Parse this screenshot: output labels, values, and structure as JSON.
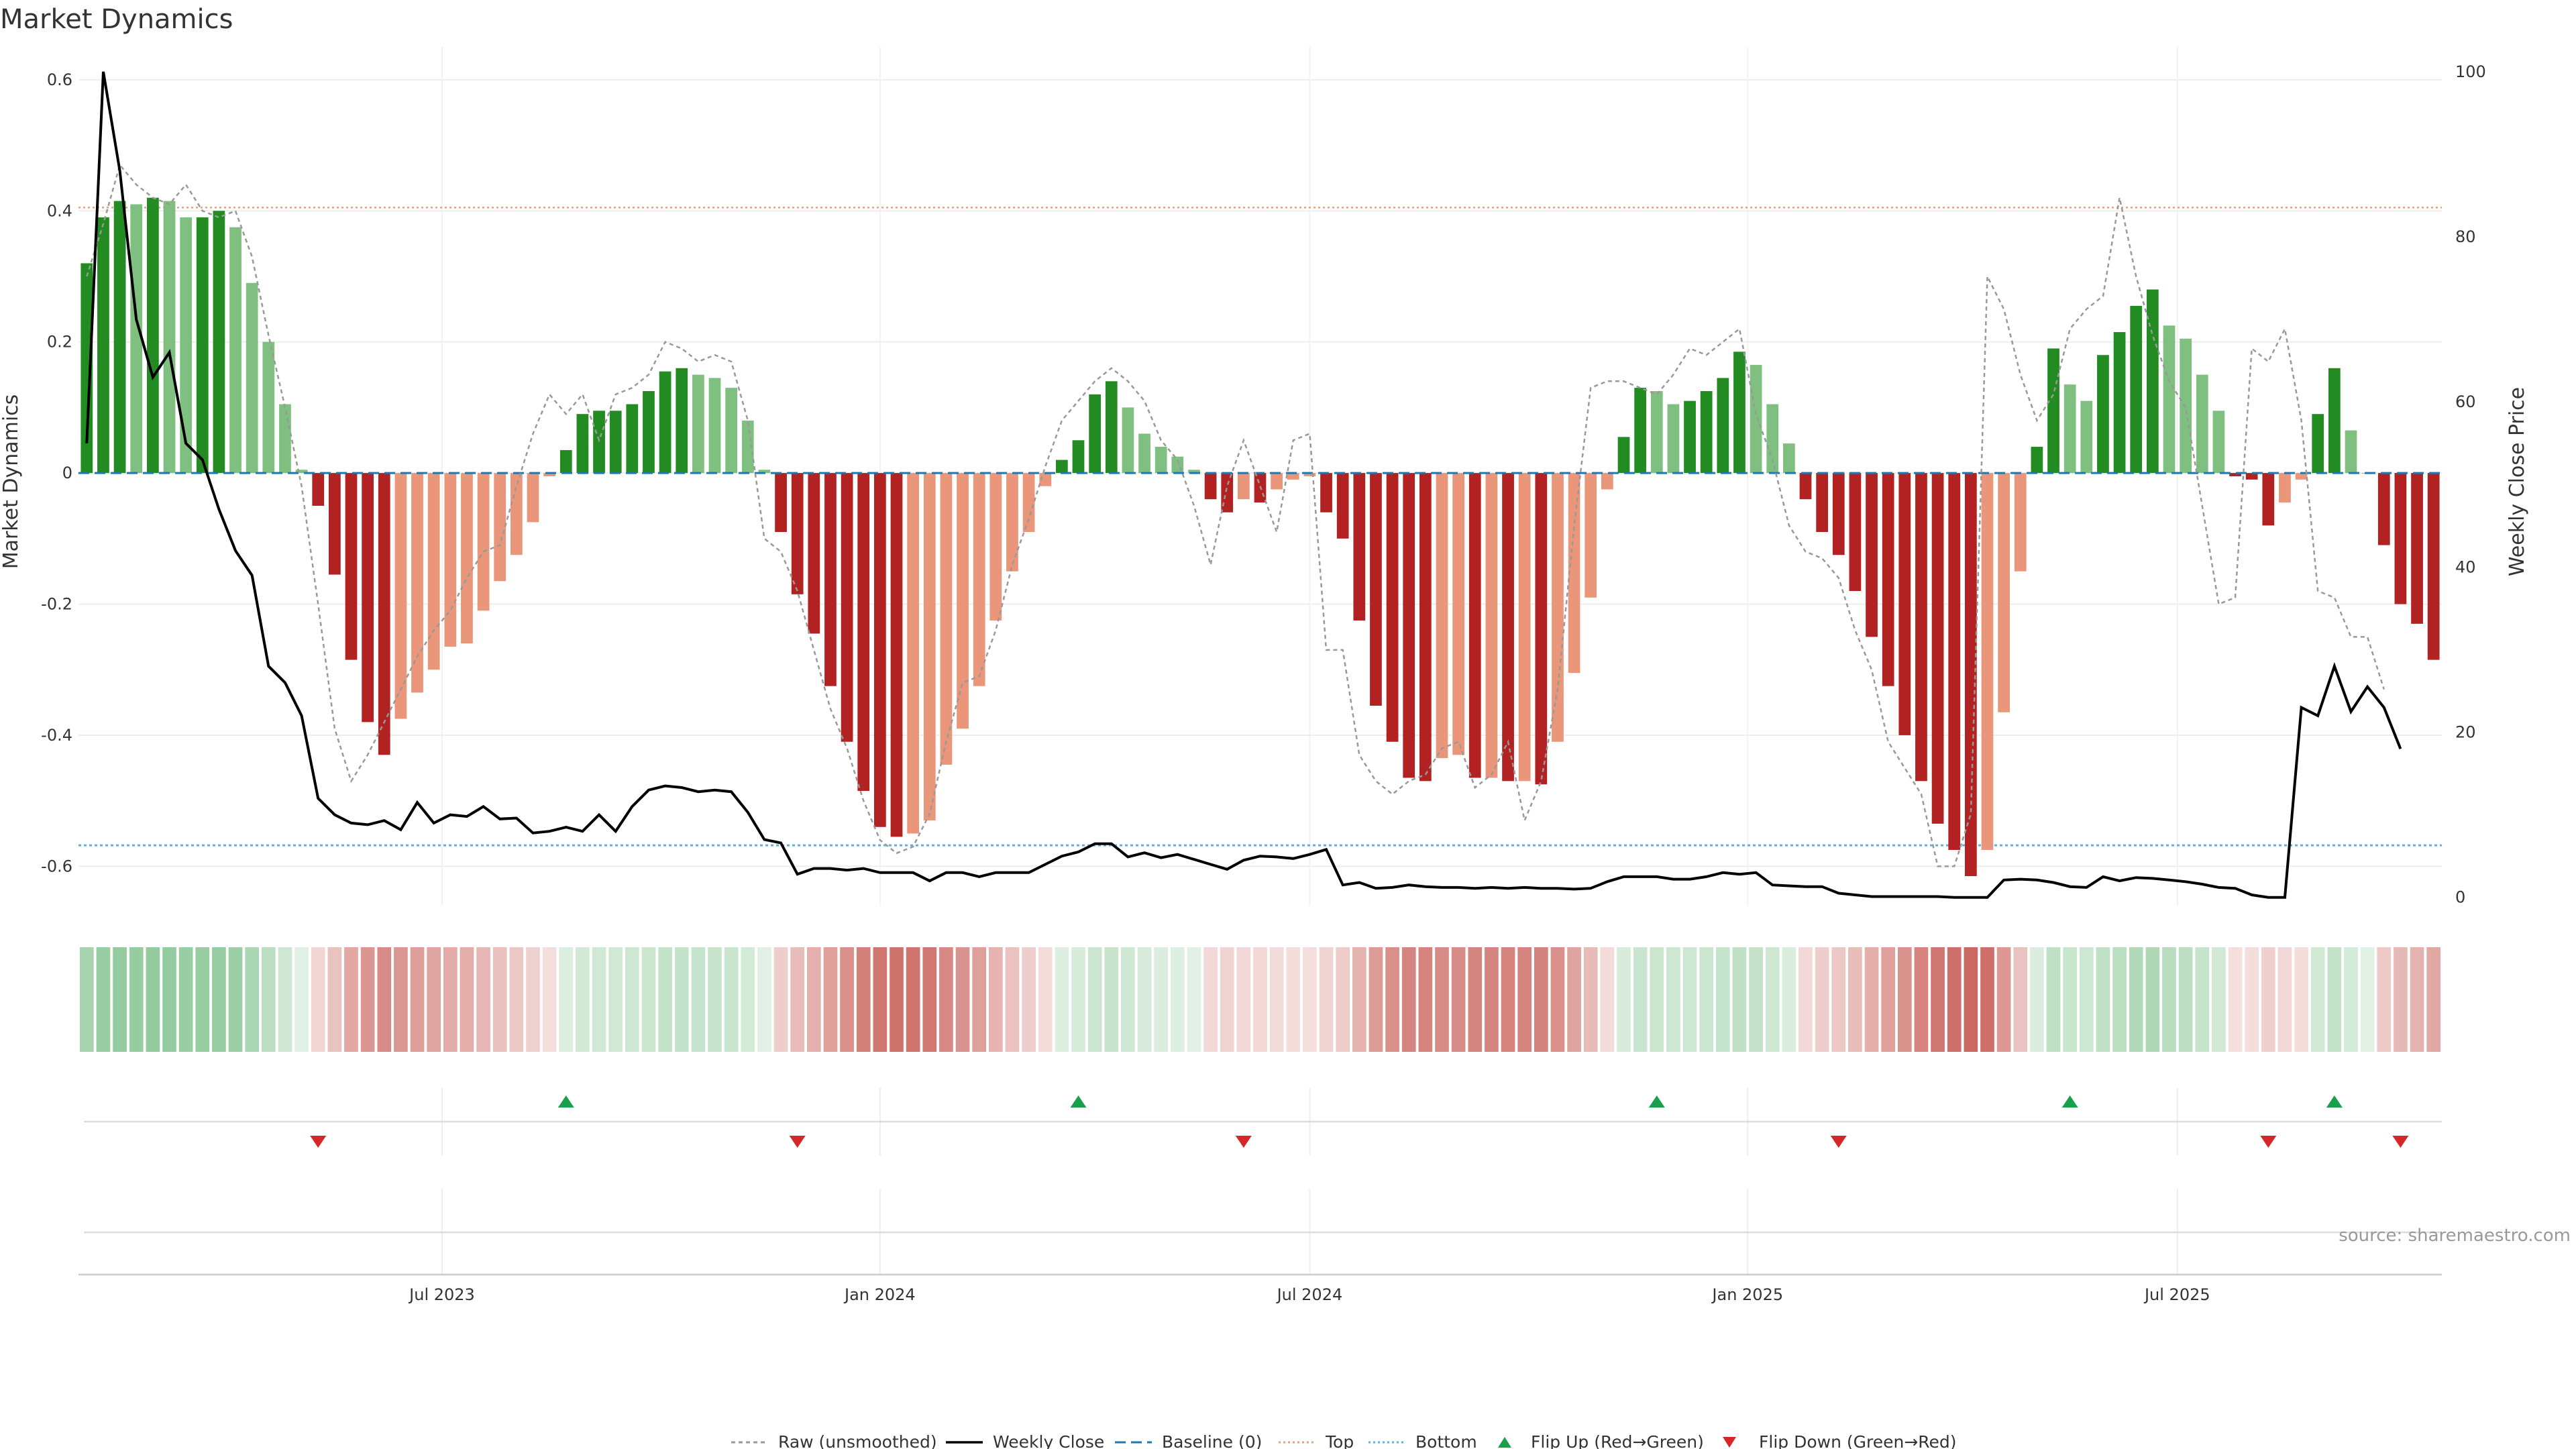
{
  "chart_data": {
    "type": "bar",
    "title": "Market Dynamics",
    "ylabel": "Market Dynamics",
    "y2label": "Weekly Close Price",
    "ylim": [
      -0.66,
      0.65
    ],
    "y2lim": [
      -1,
      103
    ],
    "yticks": [
      "-0.6",
      "-0.4",
      "-0.2",
      "0",
      "0.2",
      "0.4",
      "0.6"
    ],
    "yticks_values": [
      -0.6,
      -0.4,
      -0.2,
      0,
      0.2,
      0.4,
      0.6
    ],
    "y2ticks": [
      "0",
      "20",
      "40",
      "60",
      "80",
      "100"
    ],
    "y2ticks_values": [
      0,
      20,
      40,
      60,
      80,
      100
    ],
    "xticks": [
      "Jul 2023",
      "Jan 2024",
      "Jul 2024",
      "Jan 2025",
      "Jul 2025"
    ],
    "xticks_index": [
      22,
      48.5,
      74.5,
      101,
      127
    ],
    "top_level": 0.405,
    "bottom_level": -0.568,
    "source": "source: sharemaestro.com",
    "legend": {
      "raw": "Raw (unsmoothed)",
      "close": "Weekly Close",
      "baseline": "Baseline (0)",
      "top": "Top",
      "bottom": "Bottom",
      "flip_up": "Flip Up (Red→Green)",
      "flip_down": "Flip Down (Green→Red)"
    },
    "colors": {
      "green_strong": "#228B22",
      "green_light": "#7FBF7F",
      "red_strong": "#B22222",
      "red_light": "#E9967A",
      "close_line": "#000000",
      "raw_line": "#999999",
      "baseline": "#1F77B4",
      "top": "#E8A07A",
      "bottom": "#56B4E9",
      "flip_up": "#18A04A",
      "flip_down": "#D62728"
    },
    "series": [
      {
        "name": "Market Dynamics",
        "values": [
          0.32,
          0.39,
          0.415,
          0.41,
          0.42,
          0.415,
          0.39,
          0.39,
          0.4,
          0.375,
          0.29,
          0.2,
          0.105,
          0.005,
          -0.05,
          -0.155,
          -0.285,
          -0.38,
          -0.43,
          -0.375,
          -0.335,
          -0.3,
          -0.265,
          -0.26,
          -0.21,
          -0.165,
          -0.125,
          -0.075,
          -0.005,
          0.035,
          0.09,
          0.095,
          0.095,
          0.105,
          0.125,
          0.155,
          0.16,
          0.15,
          0.145,
          0.13,
          0.08,
          0.005,
          -0.09,
          -0.185,
          -0.245,
          -0.325,
          -0.41,
          -0.485,
          -0.54,
          -0.555,
          -0.55,
          -0.53,
          -0.445,
          -0.39,
          -0.325,
          -0.225,
          -0.15,
          -0.09,
          -0.02,
          0.02,
          0.05,
          0.12,
          0.14,
          0.1,
          0.06,
          0.04,
          0.025,
          0.005,
          -0.04,
          -0.06,
          -0.04,
          -0.045,
          -0.025,
          -0.01,
          -0.005,
          -0.06,
          -0.1,
          -0.225,
          -0.355,
          -0.41,
          -0.465,
          -0.47,
          -0.435,
          -0.43,
          -0.465,
          -0.465,
          -0.47,
          -0.47,
          -0.475,
          -0.41,
          -0.305,
          -0.19,
          -0.025,
          0.055,
          0.13,
          0.125,
          0.105,
          0.11,
          0.125,
          0.145,
          0.185,
          0.165,
          0.105,
          0.045,
          -0.04,
          -0.09,
          -0.125,
          -0.18,
          -0.25,
          -0.325,
          -0.4,
          -0.47,
          -0.535,
          -0.575,
          -0.615,
          -0.575,
          -0.365,
          -0.15,
          0.04,
          0.19,
          0.135,
          0.11,
          0.18,
          0.215,
          0.255,
          0.28,
          0.225,
          0.205,
          0.15,
          0.095,
          -0.005,
          -0.01,
          -0.08,
          -0.045,
          -0.01,
          0.09,
          0.16,
          0.065,
          0.0,
          -0.11,
          -0.2,
          -0.23,
          -0.285
        ]
      },
      {
        "name": "Weekly Close",
        "values": [
          55,
          100,
          88,
          70,
          63,
          66,
          55,
          53,
          47,
          42,
          39,
          28,
          26,
          22,
          12,
          10,
          9,
          8.8,
          9.3,
          8.2,
          11.5,
          9,
          10,
          9.8,
          11,
          9.5,
          9.6,
          7.8,
          8,
          8.5,
          8,
          10,
          8,
          11,
          13,
          13.5,
          13.3,
          12.8,
          13,
          12.8,
          10.3,
          7,
          6.6,
          2.8,
          3.5,
          3.5,
          3.3,
          3.5,
          3,
          3,
          3,
          2,
          3,
          3,
          2.5,
          3,
          3,
          3,
          4,
          5,
          5.5,
          6.5,
          6.5,
          4.9,
          5.4,
          4.8,
          5.2,
          4.6,
          4,
          3.4,
          4.5,
          5,
          4.9,
          4.7,
          5.2,
          5.8,
          1.5,
          1.8,
          1.1,
          1.2,
          1.5,
          1.3,
          1.2,
          1.2,
          1.1,
          1.2,
          1.1,
          1.2,
          1.1,
          1.1,
          1.0,
          1.1,
          1.9,
          2.5,
          2.5,
          2.5,
          2.2,
          2.2,
          2.5,
          3,
          2.8,
          3,
          1.5,
          1.4,
          1.3,
          1.3,
          0.5,
          0.3,
          0.1,
          0.1,
          0.1,
          0.1,
          0.1,
          0,
          0,
          0,
          2.1,
          2.2,
          2.1,
          1.8,
          1.3,
          1.2,
          2.5,
          2,
          2.4,
          2.3,
          2.1,
          1.9,
          1.6,
          1.2,
          1.1,
          0.3,
          0,
          0,
          23,
          22,
          28,
          22.5,
          25.5,
          23,
          18
        ]
      },
      {
        "name": "Raw (unsmoothed)",
        "values": [
          0.3,
          0.38,
          0.47,
          0.44,
          0.42,
          0.41,
          0.44,
          0.4,
          0.39,
          0.4,
          0.33,
          0.21,
          0.1,
          -0.02,
          -0.2,
          -0.39,
          -0.47,
          -0.43,
          -0.38,
          -0.33,
          -0.28,
          -0.24,
          -0.21,
          -0.16,
          -0.12,
          -0.11,
          -0.02,
          0.06,
          0.12,
          0.09,
          0.12,
          0.05,
          0.12,
          0.13,
          0.15,
          0.2,
          0.19,
          0.17,
          0.18,
          0.17,
          0.08,
          -0.1,
          -0.12,
          -0.18,
          -0.27,
          -0.36,
          -0.42,
          -0.5,
          -0.56,
          -0.58,
          -0.57,
          -0.52,
          -0.41,
          -0.32,
          -0.31,
          -0.24,
          -0.14,
          -0.07,
          0.01,
          0.08,
          0.11,
          0.14,
          0.16,
          0.14,
          0.11,
          0.05,
          0.02,
          -0.05,
          -0.14,
          -0.02,
          0.05,
          -0.02,
          -0.09,
          0.05,
          0.06,
          -0.27,
          -0.27,
          -0.43,
          -0.47,
          -0.49,
          -0.47,
          -0.46,
          -0.42,
          -0.41,
          -0.48,
          -0.46,
          -0.41,
          -0.53,
          -0.47,
          -0.33,
          -0.08,
          0.13,
          0.14,
          0.14,
          0.13,
          0.12,
          0.15,
          0.19,
          0.18,
          0.2,
          0.22,
          0.09,
          0.02,
          -0.08,
          -0.12,
          -0.13,
          -0.16,
          -0.24,
          -0.3,
          -0.41,
          -0.45,
          -0.49,
          -0.6,
          -0.6,
          -0.52,
          0.3,
          0.25,
          0.15,
          0.08,
          0.12,
          0.22,
          0.25,
          0.27,
          0.42,
          0.3,
          0.21,
          0.14,
          0.1,
          -0.05,
          -0.2,
          -0.19,
          0.19,
          0.17,
          0.22,
          0.08,
          -0.18,
          -0.19,
          -0.25,
          -0.25,
          -0.33
        ]
      }
    ],
    "flip_up_index": [
      29,
      60,
      95,
      120,
      136
    ],
    "flip_down_index": [
      14,
      43,
      70,
      106,
      132,
      140
    ]
  }
}
